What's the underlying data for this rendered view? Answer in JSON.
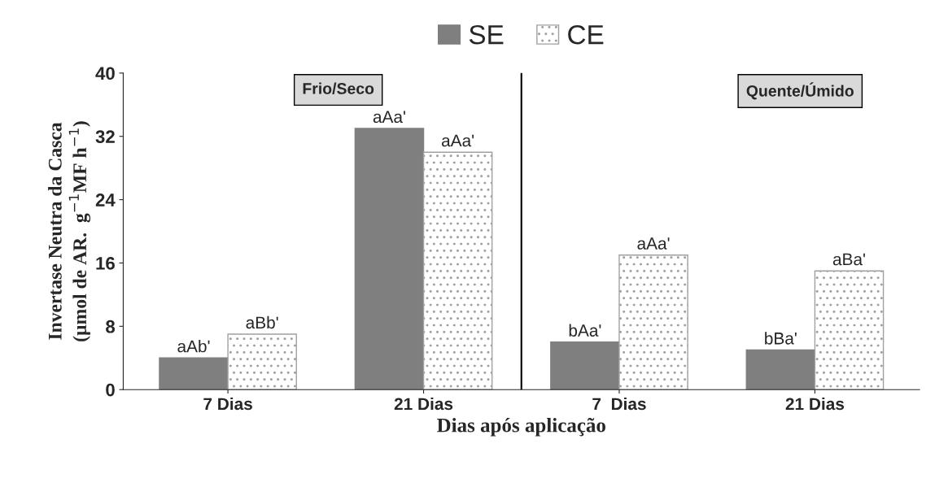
{
  "chart_data": {
    "type": "bar",
    "xlabel": "Dias após aplicação",
    "ylabel": "Invertase Neutra da Casca\n(µmol de AR.  g$^{−1}$MF h$^{−1}$)",
    "categories": [
      "7 Dias",
      "21 Dias",
      "7  Dias",
      "21 Dias"
    ],
    "series": [
      {
        "name": "SE",
        "color": "#7f7f7f",
        "values": [
          4,
          33,
          6,
          5
        ],
        "value_labels": [
          "aAb'",
          "aAa'",
          "bAa'",
          "bBa'"
        ]
      },
      {
        "name": "CE",
        "color": "#a0a0a0",
        "values": [
          7,
          30,
          17,
          15
        ],
        "value_labels": [
          "aBb'",
          "aAa'",
          "aAa'",
          "aBa'"
        ]
      }
    ],
    "ylim": [
      0,
      40
    ],
    "yticks": [
      0,
      8,
      16,
      24,
      32,
      40
    ],
    "legend": "top",
    "grid": false,
    "annotations": [
      "Frio/Seco",
      "Quente/Úmido"
    ]
  }
}
